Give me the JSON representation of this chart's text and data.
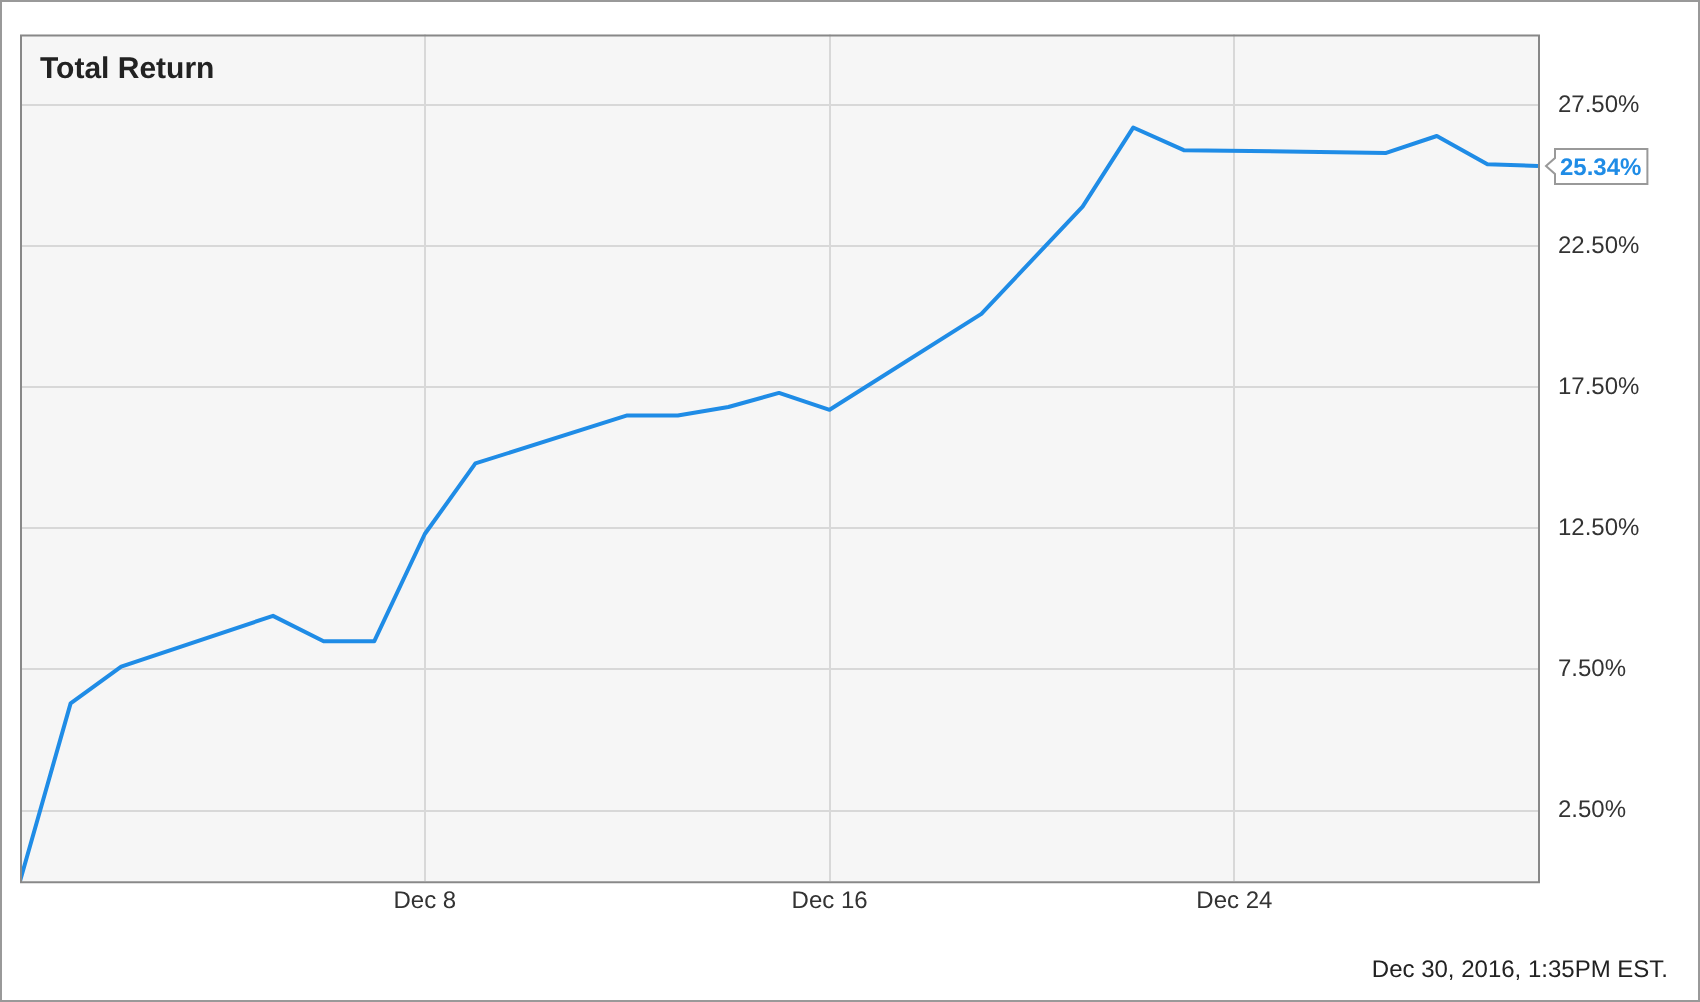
{
  "chart_data": {
    "type": "line",
    "title": "Total Return",
    "x": [
      "2016-11-30",
      "2016-12-01",
      "2016-12-02",
      "2016-12-05",
      "2016-12-06",
      "2016-12-07",
      "2016-12-08",
      "2016-12-09",
      "2016-12-12",
      "2016-12-13",
      "2016-12-14",
      "2016-12-15",
      "2016-12-16",
      "2016-12-19",
      "2016-12-21",
      "2016-12-22",
      "2016-12-23",
      "2016-12-27",
      "2016-12-28",
      "2016-12-29",
      "2016-12-30"
    ],
    "series": [
      {
        "color": "#1f8ce6",
        "values": [
          0,
          6.3,
          7.6,
          9.4,
          8.5,
          8.5,
          12.3,
          14.8,
          16.5,
          16.5,
          16.8,
          17.3,
          16.7,
          20.1,
          23.9,
          26.7,
          25.9,
          25.8,
          26.4,
          25.4,
          25.34
        ],
        "value_labels": [
          null,
          null,
          null,
          null,
          null,
          null,
          null,
          null,
          null,
          null,
          null,
          null,
          null,
          null,
          null,
          null,
          null,
          null,
          null,
          null,
          "25.34%"
        ]
      }
    ],
    "xlim": [
      "2016-11-30",
      "2016-12-30"
    ],
    "xticks": [
      {
        "value": "2016-12-08",
        "label": "Dec 8"
      },
      {
        "value": "2016-12-16",
        "label": "Dec 16"
      },
      {
        "value": "2016-12-24",
        "label": "Dec 24"
      }
    ],
    "ylim": [
      0,
      30
    ],
    "yticks": [
      {
        "value": 2.5,
        "label": "2.50%"
      },
      {
        "value": 7.5,
        "label": "7.50%"
      },
      {
        "value": 12.5,
        "label": "12.50%"
      },
      {
        "value": 17.5,
        "label": "17.50%"
      },
      {
        "value": 22.5,
        "label": "22.50%"
      },
      {
        "value": 27.5,
        "label": "27.50%"
      }
    ],
    "grid": true,
    "legend": false,
    "marker": "none",
    "line_style": "solid",
    "annotations": [
      "Dec 30, 2016, 1:35PM EST."
    ]
  }
}
